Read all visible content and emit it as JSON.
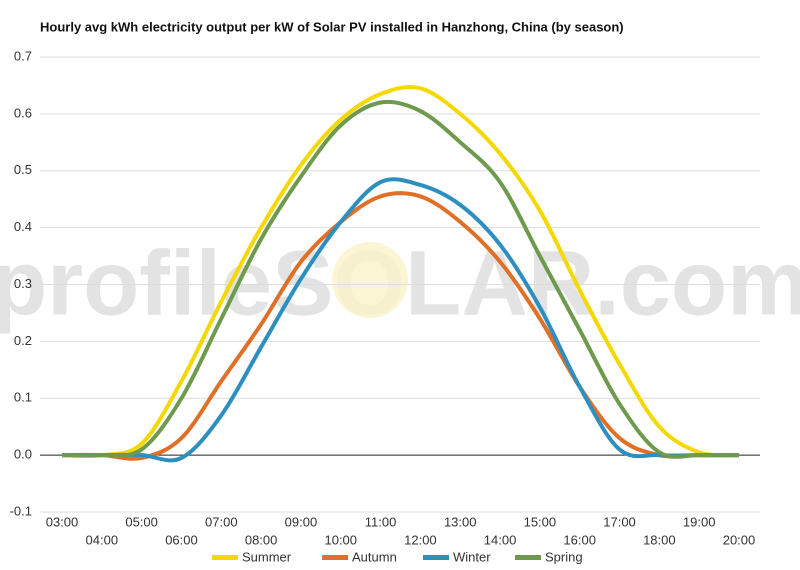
{
  "chart_data": {
    "type": "line",
    "title": "Hourly avg kWh electricity output per kW of Solar PV installed in Hanzhong, China (by season)",
    "watermark": "profileSOLAR.com",
    "categories": [
      "03:00",
      "04:00",
      "05:00",
      "06:00",
      "07:00",
      "08:00",
      "09:00",
      "10:00",
      "11:00",
      "12:00",
      "13:00",
      "14:00",
      "15:00",
      "16:00",
      "17:00",
      "18:00",
      "19:00",
      "20:00"
    ],
    "series": [
      {
        "name": "Summer",
        "color": "#f5d800",
        "values": [
          0,
          0,
          0.02,
          0.13,
          0.27,
          0.4,
          0.51,
          0.59,
          0.635,
          0.645,
          0.6,
          0.53,
          0.43,
          0.29,
          0.16,
          0.05,
          0.005,
          0
        ]
      },
      {
        "name": "Autumn",
        "color": "#e07027",
        "values": [
          0,
          0,
          -0.005,
          0.03,
          0.13,
          0.23,
          0.34,
          0.41,
          0.455,
          0.455,
          0.41,
          0.34,
          0.24,
          0.12,
          0.03,
          0,
          0,
          0
        ]
      },
      {
        "name": "Winter",
        "color": "#2d8fbf",
        "values": [
          0,
          0,
          0,
          -0.005,
          0.07,
          0.19,
          0.31,
          0.41,
          0.48,
          0.475,
          0.44,
          0.37,
          0.26,
          0.12,
          0.01,
          0,
          0,
          0
        ]
      },
      {
        "name": "Spring",
        "color": "#6e9a4e",
        "values": [
          0,
          0,
          0.01,
          0.1,
          0.24,
          0.38,
          0.49,
          0.58,
          0.62,
          0.605,
          0.55,
          0.48,
          0.35,
          0.22,
          0.09,
          0.005,
          0,
          0
        ]
      }
    ],
    "ylim": [
      -0.1,
      0.7
    ],
    "yticks": [
      -0.1,
      {
        "value": 0,
        "label": "0.0"
      },
      0.1,
      0.2,
      0.3,
      0.4,
      0.5,
      0.6,
      0.7
    ],
    "grid": true
  }
}
